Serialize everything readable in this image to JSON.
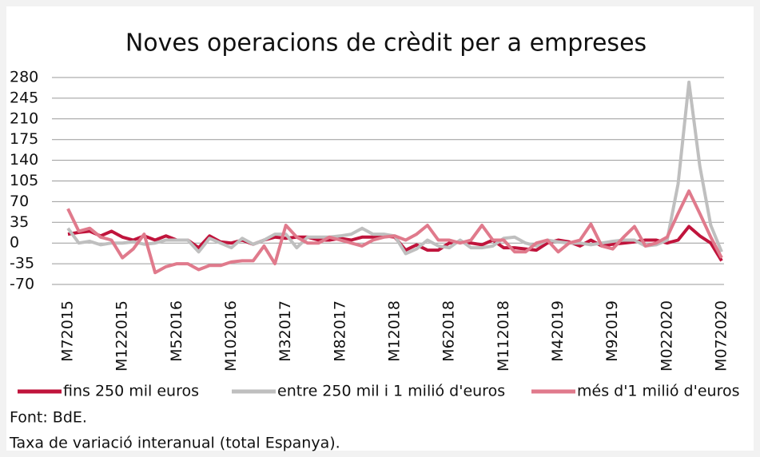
{
  "chart_data": {
    "type": "line",
    "title": "Noves operacions de crèdit per a empreses",
    "categories": [
      "M72015",
      null,
      null,
      null,
      null,
      "M122015",
      null,
      null,
      null,
      null,
      "M52016",
      null,
      null,
      null,
      null,
      "M102016",
      null,
      null,
      null,
      null,
      "M32017",
      null,
      null,
      null,
      null,
      "M82017",
      null,
      null,
      null,
      null,
      "M12018",
      null,
      null,
      null,
      null,
      "M62018",
      null,
      null,
      null,
      null,
      "M112018",
      null,
      null,
      null,
      null,
      "M42019",
      null,
      null,
      null,
      null,
      "M92019",
      null,
      null,
      null,
      null,
      "M022020",
      null,
      null,
      null,
      null,
      "M072020"
    ],
    "series": [
      {
        "name": "fins 250 mil euros",
        "color": "#c0143c",
        "values": [
          15,
          18,
          20,
          12,
          20,
          10,
          5,
          12,
          5,
          12,
          5,
          5,
          -8,
          12,
          2,
          0,
          5,
          -2,
          5,
          10,
          8,
          10,
          10,
          5,
          5,
          8,
          5,
          10,
          10,
          12,
          10,
          -12,
          -3,
          -12,
          -12,
          0,
          2,
          0,
          -3,
          5,
          -8,
          -8,
          -10,
          -12,
          0,
          5,
          2,
          -5,
          5,
          -5,
          -2,
          0,
          2,
          5,
          5,
          0,
          5,
          28,
          12,
          0,
          -30
        ]
      },
      {
        "name": "entre 250 mil i 1 milió d'euros",
        "color": "#bfbfbf",
        "values": [
          25,
          0,
          3,
          -3,
          0,
          0,
          2,
          -2,
          0,
          5,
          5,
          5,
          -15,
          8,
          0,
          -8,
          8,
          -2,
          5,
          15,
          15,
          -8,
          10,
          10,
          10,
          12,
          15,
          25,
          15,
          15,
          12,
          -18,
          -10,
          5,
          -5,
          -8,
          5,
          -8,
          -8,
          -5,
          8,
          10,
          0,
          -5,
          5,
          2,
          0,
          0,
          -3,
          0,
          3,
          5,
          5,
          -5,
          -3,
          5,
          100,
          272,
          130,
          30,
          -15
        ]
      },
      {
        "name": "més d'1 milió d'euros",
        "color": "#e07a8c",
        "values": [
          58,
          20,
          25,
          10,
          5,
          -25,
          -10,
          15,
          -50,
          -40,
          -35,
          -35,
          -45,
          -38,
          -38,
          -32,
          -30,
          -30,
          -5,
          -35,
          30,
          10,
          0,
          0,
          10,
          5,
          0,
          -5,
          5,
          10,
          12,
          5,
          15,
          30,
          5,
          5,
          0,
          5,
          30,
          5,
          5,
          -15,
          -15,
          0,
          5,
          -15,
          0,
          5,
          32,
          -5,
          -10,
          10,
          28,
          -5,
          0,
          10,
          50,
          88,
          50,
          10,
          -25
        ]
      }
    ],
    "ylim": [
      -70,
      280
    ],
    "yticks": [
      -70,
      -35,
      0,
      35,
      70,
      105,
      140,
      175,
      210,
      245,
      280
    ],
    "grid": true,
    "notes": [
      "Font: BdE.",
      "Taxa de variació interanual (total Espanya)."
    ]
  }
}
